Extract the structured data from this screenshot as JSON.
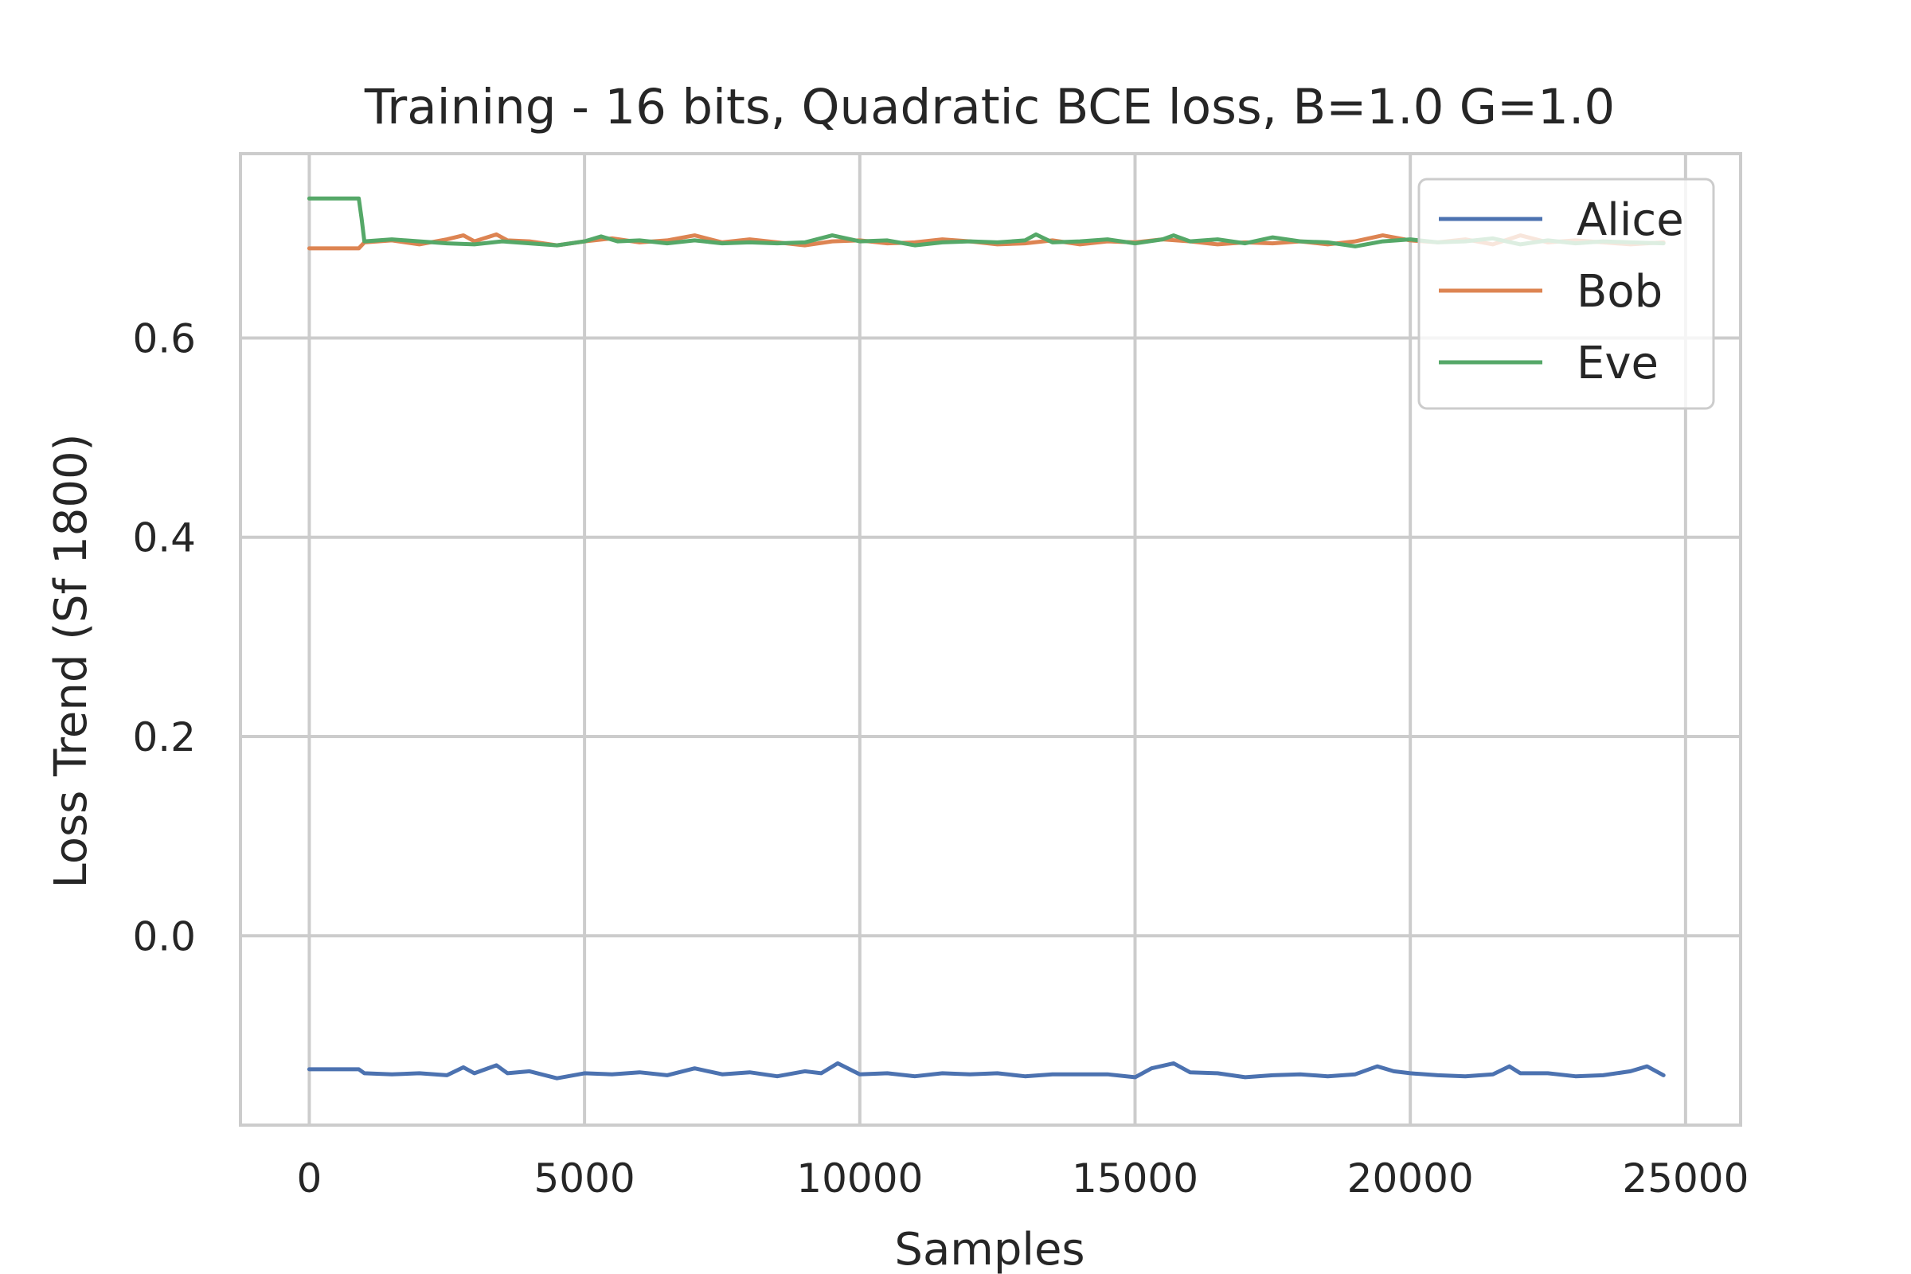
{
  "chart_data": {
    "type": "line",
    "title": "Training - 16 bits, Quadratic BCE loss, B=1.0 G=1.0",
    "xlabel": "Samples",
    "ylabel": "Loss Trend (Sf 1800)",
    "xlim": [
      -1250,
      26000
    ],
    "ylim": [
      -0.19,
      0.785
    ],
    "xticks": [
      0,
      5000,
      10000,
      15000,
      20000,
      25000
    ],
    "xtick_labels": [
      "0",
      "5000",
      "10000",
      "15000",
      "20000",
      "25000"
    ],
    "yticks": [
      0.0,
      0.2,
      0.4,
      0.6
    ],
    "ytick_labels": [
      "0.0",
      "0.2",
      "0.4",
      "0.6"
    ],
    "grid": true,
    "legend_position": "top-right",
    "colors": {
      "Alice": "#4c72b0",
      "Bob": "#dd8452",
      "Eve": "#55a868",
      "grid": "#cccccc",
      "text": "#262626"
    },
    "series": [
      {
        "name": "Alice",
        "x": [
          0,
          900,
          1000,
          1500,
          2000,
          2500,
          2800,
          3000,
          3400,
          3600,
          4000,
          4500,
          5000,
          5500,
          6000,
          6500,
          7000,
          7500,
          8000,
          8500,
          9000,
          9300,
          9600,
          10000,
          10500,
          11000,
          11500,
          12000,
          12500,
          13000,
          13500,
          14000,
          14500,
          15000,
          15300,
          15700,
          16000,
          16500,
          17000,
          17500,
          18000,
          18500,
          19000,
          19400,
          19700,
          20000,
          20500,
          21000,
          21500,
          21800,
          22000,
          22500,
          23000,
          23500,
          24000,
          24300,
          24600
        ],
        "y": [
          -0.134,
          -0.134,
          -0.138,
          -0.139,
          -0.138,
          -0.14,
          -0.132,
          -0.138,
          -0.13,
          -0.138,
          -0.136,
          -0.143,
          -0.138,
          -0.139,
          -0.137,
          -0.14,
          -0.133,
          -0.139,
          -0.137,
          -0.141,
          -0.136,
          -0.138,
          -0.128,
          -0.139,
          -0.138,
          -0.141,
          -0.138,
          -0.139,
          -0.138,
          -0.141,
          -0.139,
          -0.139,
          -0.139,
          -0.142,
          -0.133,
          -0.128,
          -0.137,
          -0.138,
          -0.142,
          -0.14,
          -0.139,
          -0.141,
          -0.139,
          -0.131,
          -0.136,
          -0.138,
          -0.14,
          -0.141,
          -0.139,
          -0.131,
          -0.138,
          -0.138,
          -0.141,
          -0.14,
          -0.136,
          -0.131,
          -0.14
        ]
      },
      {
        "name": "Bob",
        "x": [
          0,
          900,
          1000,
          1500,
          2000,
          2500,
          2800,
          3000,
          3400,
          3600,
          4000,
          4500,
          5000,
          5500,
          6000,
          6500,
          7000,
          7500,
          8000,
          8500,
          9000,
          9500,
          10000,
          10500,
          11000,
          11500,
          12000,
          12500,
          13000,
          13500,
          14000,
          14500,
          15000,
          15500,
          16000,
          16500,
          17000,
          17500,
          18000,
          18500,
          19000,
          19500,
          20000,
          20500,
          21000,
          21500,
          22000,
          22500,
          23000,
          23500,
          24000,
          24600
        ],
        "y": [
          0.69,
          0.69,
          0.696,
          0.698,
          0.694,
          0.699,
          0.703,
          0.697,
          0.704,
          0.698,
          0.697,
          0.693,
          0.697,
          0.7,
          0.696,
          0.698,
          0.703,
          0.696,
          0.699,
          0.696,
          0.693,
          0.697,
          0.698,
          0.695,
          0.696,
          0.699,
          0.697,
          0.694,
          0.695,
          0.698,
          0.694,
          0.697,
          0.696,
          0.699,
          0.697,
          0.694,
          0.696,
          0.695,
          0.697,
          0.694,
          0.697,
          0.703,
          0.698,
          0.696,
          0.699,
          0.694,
          0.703,
          0.696,
          0.698,
          0.696,
          0.694,
          0.696
        ]
      },
      {
        "name": "Eve",
        "x": [
          0,
          900,
          950,
          1000,
          1500,
          2000,
          2500,
          3000,
          3500,
          4000,
          4500,
          5000,
          5300,
          5600,
          6000,
          6500,
          7000,
          7500,
          8000,
          8500,
          9000,
          9500,
          10000,
          10500,
          11000,
          11500,
          12000,
          12500,
          13000,
          13200,
          13500,
          14000,
          14500,
          15000,
          15500,
          15700,
          16000,
          16500,
          17000,
          17500,
          18000,
          18500,
          19000,
          19500,
          20000,
          20500,
          21000,
          21500,
          22000,
          22500,
          23000,
          23500,
          24000,
          24600
        ],
        "y": [
          0.74,
          0.74,
          0.72,
          0.697,
          0.699,
          0.697,
          0.695,
          0.694,
          0.697,
          0.695,
          0.693,
          0.697,
          0.702,
          0.697,
          0.698,
          0.695,
          0.698,
          0.695,
          0.696,
          0.695,
          0.696,
          0.703,
          0.697,
          0.698,
          0.693,
          0.696,
          0.697,
          0.696,
          0.698,
          0.704,
          0.696,
          0.697,
          0.699,
          0.695,
          0.699,
          0.703,
          0.697,
          0.699,
          0.695,
          0.701,
          0.697,
          0.696,
          0.692,
          0.697,
          0.699,
          0.696,
          0.697,
          0.7,
          0.694,
          0.698,
          0.695,
          0.697,
          0.696,
          0.695
        ]
      }
    ]
  }
}
